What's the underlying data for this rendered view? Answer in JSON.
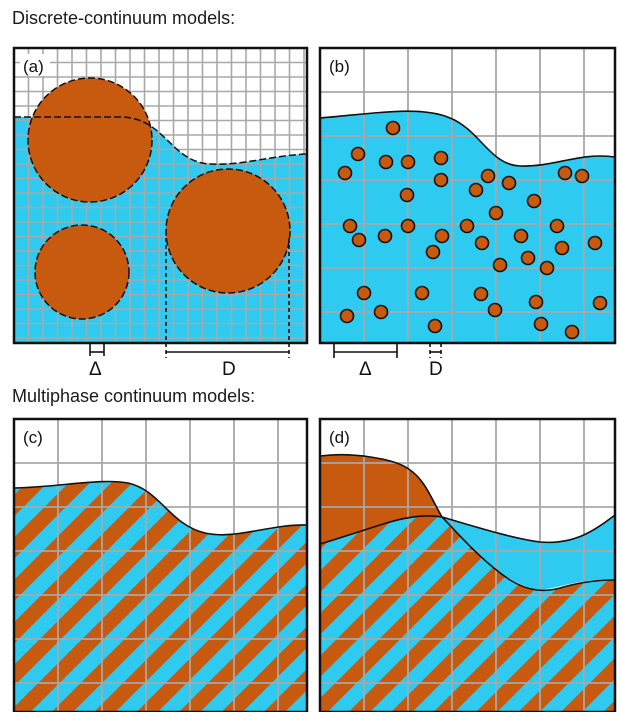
{
  "titles": {
    "discrete": "Discrete-continuum models:",
    "multiphase": "Multiphase continuum models:"
  },
  "panels": [
    {
      "id": "a",
      "label": "(a)"
    },
    {
      "id": "b",
      "label": "(b)"
    },
    {
      "id": "c",
      "label": "(c)"
    },
    {
      "id": "d",
      "label": "(d)"
    }
  ],
  "dimensions": {
    "a_small": "Δ",
    "a_large": "D",
    "b_large": "Δ",
    "b_small": "D"
  },
  "colors": {
    "fluid": "#2fcaf0",
    "particle": "#c85a0f",
    "grid": "#a8a8a8",
    "outline": "#111111"
  }
}
